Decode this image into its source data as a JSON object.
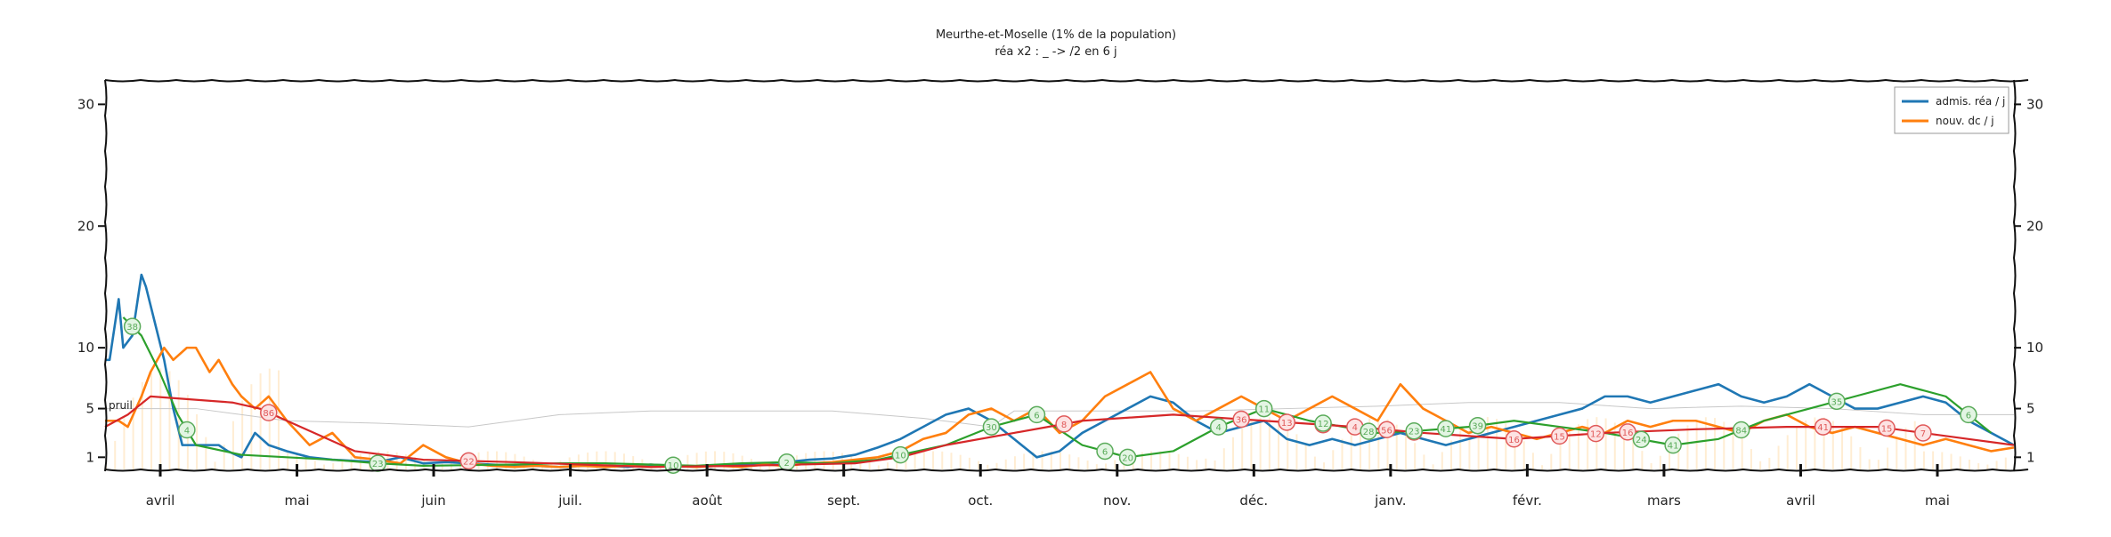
{
  "chart_data": {
    "type": "line",
    "title": "Meurthe-et-Moselle (1% de la population)",
    "subtitle": "réa x2 : _ -> /2 en 6 j",
    "y_ticks": [
      1,
      5,
      10,
      20,
      30
    ],
    "ylim": [
      0,
      32
    ],
    "x_months": [
      "avril",
      "mai",
      "juin",
      "juil.",
      "août",
      "sept.",
      "oct.",
      "nov.",
      "déc.",
      "janv.",
      "févr.",
      "mars",
      "avril",
      "mai"
    ],
    "legend_position": "top-right",
    "series": [
      {
        "name": "admis. réa / j",
        "color": "#1f77b4",
        "x": [
          0,
          1,
          3,
          4,
          6,
          8,
          9,
          11,
          13,
          15,
          17,
          19,
          21,
          23,
          25,
          27,
          30,
          33,
          36,
          40,
          45,
          50,
          55,
          60,
          65,
          70,
          75,
          80,
          85,
          90,
          95,
          100,
          105,
          110,
          115,
          120,
          125,
          130,
          135,
          140,
          145,
          150,
          155,
          160,
          165,
          170,
          175,
          180,
          185,
          190,
          195,
          200,
          205,
          210,
          215,
          220,
          225,
          230,
          235,
          240,
          245,
          250,
          255,
          260,
          265,
          270,
          275,
          280,
          285,
          290,
          295,
          300,
          305,
          310,
          315,
          320,
          325,
          330,
          335,
          340,
          345,
          350,
          355,
          360,
          365,
          370,
          375,
          380,
          385,
          390,
          395,
          400,
          405,
          410,
          415,
          420
        ],
        "values": [
          9,
          9,
          14,
          10,
          11,
          16,
          15,
          12,
          9,
          5,
          2,
          2,
          2,
          2,
          2,
          1.5,
          1,
          3,
          2,
          1.5,
          1,
          0.8,
          0.7,
          0.6,
          1,
          0.5,
          0.6,
          0.5,
          0.4,
          0.3,
          0.3,
          0.2,
          0.3,
          0.3,
          0.2,
          0.4,
          0.3,
          0.2,
          0.3,
          0.4,
          0.5,
          0.6,
          0.8,
          0.9,
          1.2,
          1.8,
          2.5,
          3.5,
          4.5,
          5,
          4,
          2.5,
          1,
          1.5,
          3,
          4,
          5,
          6,
          5.5,
          4,
          3,
          3.5,
          4,
          2.5,
          2,
          2.5,
          2,
          2.5,
          3,
          2.5,
          2,
          2.5,
          3,
          3.5,
          4,
          4.5,
          5,
          6,
          6,
          5.5,
          6,
          6.5,
          7,
          6,
          5.5,
          6,
          7,
          6,
          5,
          5,
          5.5,
          6,
          5.5,
          4,
          3,
          2
        ]
      },
      {
        "name": "nouv. dc / j",
        "color": "#ff7f0e",
        "x": [
          0,
          3,
          5,
          8,
          10,
          13,
          15,
          18,
          20,
          23,
          25,
          28,
          30,
          33,
          36,
          40,
          45,
          50,
          55,
          60,
          65,
          70,
          75,
          80,
          85,
          90,
          95,
          100,
          105,
          110,
          115,
          120,
          125,
          130,
          135,
          140,
          145,
          150,
          155,
          160,
          165,
          170,
          175,
          180,
          185,
          190,
          195,
          200,
          205,
          210,
          215,
          220,
          225,
          230,
          235,
          240,
          245,
          250,
          255,
          260,
          265,
          270,
          275,
          280,
          285,
          290,
          295,
          300,
          305,
          310,
          315,
          320,
          325,
          330,
          335,
          340,
          345,
          350,
          355,
          360,
          365,
          370,
          375,
          380,
          385,
          390,
          395,
          400,
          405,
          410,
          415,
          420
        ],
        "values": [
          4,
          4,
          3.5,
          6,
          8,
          10,
          9,
          10,
          10,
          8,
          9,
          7,
          6,
          5,
          6,
          4,
          2,
          3,
          1,
          0.8,
          0.5,
          2,
          1,
          0.5,
          0.3,
          0.2,
          0.3,
          0.2,
          0.3,
          0.2,
          0.3,
          0.2,
          0.3,
          0.2,
          0.3,
          0.2,
          0.4,
          0.3,
          0.5,
          0.6,
          0.8,
          1,
          1.5,
          2.5,
          3,
          4.5,
          5,
          4,
          5,
          3,
          4,
          6,
          7,
          8,
          5,
          4,
          5,
          6,
          5,
          4,
          5,
          6,
          5,
          4,
          7,
          5,
          4,
          3,
          3.5,
          3,
          2.5,
          3,
          3.5,
          3,
          4,
          3.5,
          4,
          4,
          3.5,
          3,
          4,
          4.5,
          3.5,
          3,
          3.5,
          3,
          2.5,
          2,
          2.5,
          2,
          1.5,
          1.8
        ]
      },
      {
        "name": "",
        "color": "#2ca02c",
        "x": [
          4,
          8,
          12,
          16,
          20,
          30,
          40,
          50,
          60,
          70,
          90,
          100,
          110,
          130,
          140,
          150,
          160,
          170,
          185,
          195,
          205,
          215,
          225,
          235,
          245,
          255,
          265,
          280,
          290,
          300,
          310,
          320,
          330,
          345,
          355,
          365,
          375,
          385,
          395,
          405,
          415
        ],
        "values": [
          12.5,
          11,
          8,
          4.5,
          2,
          1.2,
          1,
          0.8,
          0.5,
          0.3,
          0.4,
          0.5,
          0.5,
          0.3,
          0.5,
          0.6,
          0.5,
          0.8,
          2,
          3.5,
          4.5,
          2,
          1,
          1.5,
          3.5,
          5,
          4,
          3,
          3.2,
          3.5,
          4,
          3.5,
          3,
          2,
          2.5,
          4,
          5,
          6,
          7,
          6,
          3
        ]
      },
      {
        "name": "",
        "color": "#d62728",
        "x": [
          0,
          5,
          10,
          28,
          34,
          40,
          55,
          70,
          90,
          120,
          140,
          165,
          175,
          185,
          200,
          215,
          235,
          255,
          275,
          290,
          310,
          330,
          350,
          370,
          390,
          410,
          420
        ],
        "values": [
          3.5,
          4.5,
          6,
          5.5,
          5,
          4,
          1.5,
          0.8,
          0.6,
          0.2,
          0.3,
          0.5,
          1,
          2,
          3,
          4,
          4.5,
          4,
          3.5,
          3,
          2.5,
          3,
          3.3,
          3.5,
          3.5,
          2.5,
          2
        ]
      }
    ],
    "annotations": [
      {
        "x": 6,
        "label": "38",
        "color": "green"
      },
      {
        "x": 18,
        "label": "4",
        "color": "green"
      },
      {
        "x": 36,
        "label": "86",
        "color": "red"
      },
      {
        "x": 60,
        "label": "23",
        "color": "green"
      },
      {
        "x": 80,
        "label": "22",
        "color": "red"
      },
      {
        "x": 125,
        "label": "10",
        "color": "green"
      },
      {
        "x": 150,
        "label": "2",
        "color": "green"
      },
      {
        "x": 175,
        "label": "10",
        "color": "green"
      },
      {
        "x": 195,
        "label": "30",
        "color": "green"
      },
      {
        "x": 205,
        "label": "6",
        "color": "green"
      },
      {
        "x": 211,
        "label": "8",
        "color": "red"
      },
      {
        "x": 220,
        "label": "6",
        "color": "green"
      },
      {
        "x": 225,
        "label": "20",
        "color": "green"
      },
      {
        "x": 245,
        "label": "4",
        "color": "green"
      },
      {
        "x": 250,
        "label": "36",
        "color": "red"
      },
      {
        "x": 255,
        "label": "11",
        "color": "green"
      },
      {
        "x": 260,
        "label": "13",
        "color": "red"
      },
      {
        "x": 268,
        "label": "11",
        "color": "red"
      },
      {
        "x": 268,
        "label": "12",
        "color": "green"
      },
      {
        "x": 275,
        "label": "4",
        "color": "red"
      },
      {
        "x": 278,
        "label": "28",
        "color": "green"
      },
      {
        "x": 282,
        "label": "56",
        "color": "red"
      },
      {
        "x": 288,
        "label": "18",
        "color": "red"
      },
      {
        "x": 288,
        "label": "23",
        "color": "green"
      },
      {
        "x": 295,
        "label": "41",
        "color": "green"
      },
      {
        "x": 302,
        "label": "39",
        "color": "green"
      },
      {
        "x": 310,
        "label": "16",
        "color": "red"
      },
      {
        "x": 320,
        "label": "15",
        "color": "red"
      },
      {
        "x": 328,
        "label": "12",
        "color": "red"
      },
      {
        "x": 335,
        "label": "16",
        "color": "red"
      },
      {
        "x": 338,
        "label": "24",
        "color": "green"
      },
      {
        "x": 345,
        "label": "41",
        "color": "green"
      },
      {
        "x": 360,
        "label": "84",
        "color": "green"
      },
      {
        "x": 378,
        "label": "41",
        "color": "red"
      },
      {
        "x": 381,
        "label": "35",
        "color": "green"
      },
      {
        "x": 392,
        "label": "15",
        "color": "red"
      },
      {
        "x": 400,
        "label": "7",
        "color": "red"
      },
      {
        "x": 410,
        "label": "6",
        "color": "green"
      }
    ],
    "side_label": "pruil"
  }
}
